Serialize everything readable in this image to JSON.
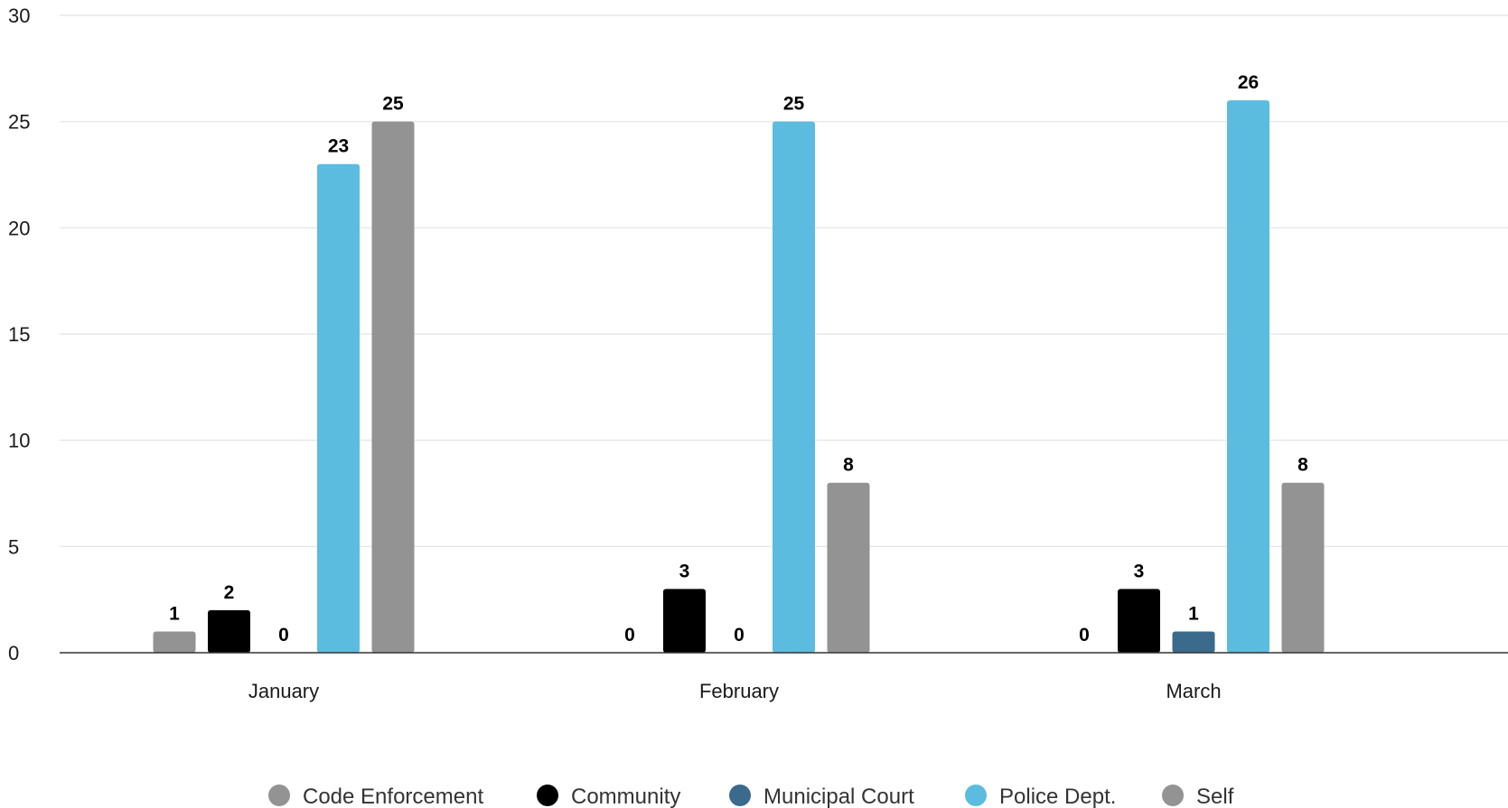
{
  "chart_data": {
    "type": "bar",
    "title": "",
    "xlabel": "",
    "ylabel": "",
    "ylim": [
      0,
      30
    ],
    "yticks": [
      0,
      5,
      10,
      15,
      20,
      25,
      30
    ],
    "grid": true,
    "legend_position": "bottom",
    "categories": [
      "January",
      "February",
      "March"
    ],
    "series": [
      {
        "name": "Code Enforcement",
        "color": "#939393",
        "values": [
          1,
          0,
          0
        ]
      },
      {
        "name": "Community",
        "color": "#000000",
        "values": [
          2,
          3,
          3
        ]
      },
      {
        "name": "Municipal Court",
        "color": "#3a6a8c",
        "values": [
          0,
          0,
          1
        ]
      },
      {
        "name": "Police Dept.",
        "color": "#5bbcdf",
        "values": [
          23,
          25,
          26
        ]
      },
      {
        "name": "Self",
        "color": "#939393",
        "values": [
          25,
          8,
          8
        ]
      }
    ]
  }
}
